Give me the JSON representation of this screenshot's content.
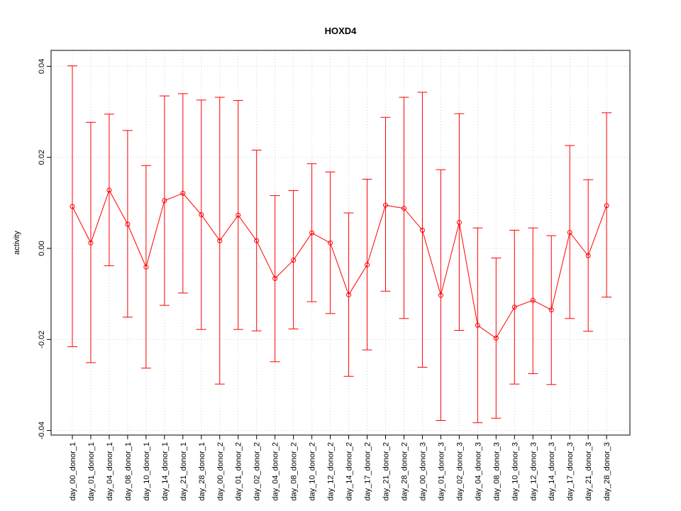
{
  "chart_data": {
    "type": "line",
    "title": "HOXD4",
    "xlabel": "",
    "ylabel": "activity",
    "ylim": [
      -0.041,
      0.0435
    ],
    "yticks": [
      -0.04,
      -0.02,
      0.0,
      0.02,
      0.04
    ],
    "ytick_labels": [
      "-0.04",
      "-0.02",
      "0.00",
      "0.02",
      "0.04"
    ],
    "grid": true,
    "color": "#ff0000",
    "categories": [
      "day_00_donor_1",
      "day_01_donor_1",
      "day_04_donor_1",
      "day_08_donor_1",
      "day_10_donor_1",
      "day_14_donor_1",
      "day_21_donor_1",
      "day_28_donor_1",
      "day_00_donor_2",
      "day_01_donor_2",
      "day_02_donor_2",
      "day_04_donor_2",
      "day_08_donor_2",
      "day_10_donor_2",
      "day_12_donor_2",
      "day_14_donor_2",
      "day_17_donor_2",
      "day_21_donor_2",
      "day_28_donor_2",
      "day_00_donor_3",
      "day_01_donor_3",
      "day_02_donor_3",
      "day_04_donor_3",
      "day_08_donor_3",
      "day_10_donor_3",
      "day_12_donor_3",
      "day_14_donor_3",
      "day_17_donor_3",
      "day_21_donor_3",
      "day_28_donor_3"
    ],
    "values": [
      0.0092,
      0.0012,
      0.0128,
      0.0053,
      -0.0041,
      0.0105,
      0.0121,
      0.0074,
      0.0017,
      0.0073,
      0.0017,
      -0.0066,
      -0.0026,
      0.0034,
      0.0012,
      -0.0102,
      -0.0036,
      0.0095,
      0.0088,
      0.004,
      -0.0103,
      0.0057,
      -0.0169,
      -0.0197,
      -0.0129,
      -0.0114,
      -0.0135,
      0.0035,
      -0.0016,
      0.0094
    ],
    "upper": [
      0.0401,
      0.0277,
      0.0295,
      0.0259,
      0.0182,
      0.0335,
      0.034,
      0.0326,
      0.0332,
      0.0325,
      0.0216,
      0.0116,
      0.0127,
      0.0186,
      0.0168,
      0.0078,
      0.0152,
      0.0288,
      0.0332,
      0.0343,
      0.0173,
      0.0296,
      0.0045,
      -0.0021,
      0.004,
      0.0045,
      0.0028,
      0.0226,
      0.0151,
      0.0298
    ],
    "lower": [
      -0.0216,
      -0.0251,
      -0.0038,
      -0.0151,
      -0.0263,
      -0.0125,
      -0.0098,
      -0.0178,
      -0.0298,
      -0.0178,
      -0.0181,
      -0.0249,
      -0.0177,
      -0.0117,
      -0.0143,
      -0.0281,
      -0.0223,
      -0.0094,
      -0.0154,
      -0.0261,
      -0.0378,
      -0.018,
      -0.0383,
      -0.0373,
      -0.0298,
      -0.0275,
      -0.0299,
      -0.0154,
      -0.0182,
      -0.0107
    ]
  }
}
